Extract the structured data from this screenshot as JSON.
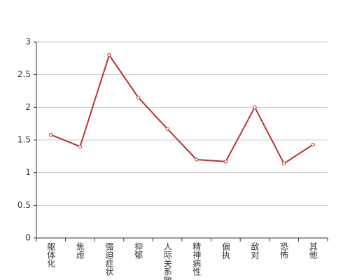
{
  "chart_data": {
    "type": "line",
    "categories": [
      "躯体化",
      "焦虑",
      "强迫症状",
      "抑郁",
      "人际关系敏感",
      "精神病性",
      "偏执",
      "敌对",
      "恐怖",
      "其他"
    ],
    "series": [
      {
        "color": "#b83232",
        "values": [
          1.58,
          1.4,
          2.8,
          2.15,
          1.67,
          1.2,
          1.17,
          2.0,
          1.14,
          1.43
        ]
      }
    ],
    "ylim": [
      0,
      3
    ],
    "yticks": [
      0,
      0.5,
      1,
      1.5,
      2,
      2.5,
      3
    ],
    "grid": true
  }
}
